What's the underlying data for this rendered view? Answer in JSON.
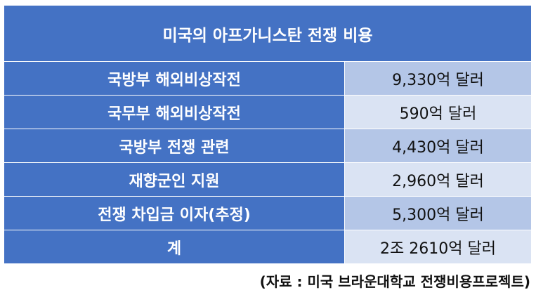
{
  "chart_data": {
    "type": "table",
    "title": "미국의 아프가니스탄 전쟁 비용",
    "rows": [
      {
        "label": "국방부 해외비상작전",
        "value": "9,330억 달러"
      },
      {
        "label": "국무부 해외비상작전",
        "value": "590억 달러"
      },
      {
        "label": "국방부 전쟁 관련",
        "value": "4,430억 달러"
      },
      {
        "label": "재향군인 지원",
        "value": "2,960억 달러"
      },
      {
        "label": "전쟁 차입금 이자(추정)",
        "value": "5,300억 달러"
      },
      {
        "label": "계",
        "value": "2조 2610억 달러"
      }
    ],
    "source": "(자료 : 미국 브라운대학교 전쟁비용프로젝트)"
  },
  "colors": {
    "header": "#4472c4",
    "value_odd": "#b4c6e7",
    "value_even": "#dae3f3"
  }
}
